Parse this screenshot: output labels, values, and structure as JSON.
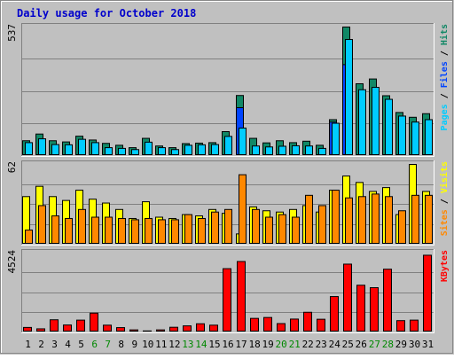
{
  "chart_data": {
    "type": "bar",
    "title": "Daily usage for October 2018",
    "categories": [
      "1",
      "2",
      "3",
      "4",
      "5",
      "6",
      "7",
      "8",
      "9",
      "10",
      "11",
      "12",
      "13",
      "14",
      "15",
      "16",
      "17",
      "18",
      "19",
      "20",
      "21",
      "22",
      "23",
      "24",
      "25",
      "26",
      "27",
      "28",
      "29",
      "30",
      "31"
    ],
    "weekend_days": [
      "6",
      "7",
      "13",
      "14",
      "20",
      "21",
      "27",
      "28"
    ],
    "grid": true,
    "panels": [
      {
        "name": "top",
        "max_label": "537",
        "ylim": [
          0,
          537
        ],
        "right_label": [
          {
            "text": "Pages",
            "color": "#00ccff"
          },
          {
            "text": " / ",
            "color": "#000000"
          },
          {
            "text": "Files",
            "color": "#0044ff"
          },
          {
            "text": " / ",
            "color": "#000000"
          },
          {
            "text": "Hits",
            "color": "#118866"
          }
        ],
        "series": [
          {
            "name": "Hits",
            "color": "#118866",
            "values": [
              62,
              90,
              62,
              57,
              81,
              65,
              51,
              43,
              33,
              72,
              40,
              33,
              50,
              52,
              54,
              100,
              251,
              72,
              53,
              62,
              54,
              60,
              43,
              150,
              537,
              300,
              320,
              250,
              180,
              160,
              175
            ]
          },
          {
            "name": "Files",
            "color": "#0044ff",
            "values": [
              0,
              0,
              0,
              0,
              0,
              0,
              0,
              0,
              0,
              0,
              0,
              0,
              0,
              0,
              0,
              0,
              200,
              0,
              0,
              0,
              0,
              0,
              0,
              140,
              380,
              0,
              0,
              0,
              0,
              0,
              0
            ]
          },
          {
            "name": "Pages",
            "color": "#00ccff",
            "values": [
              54,
              70,
              46,
              45,
              68,
              54,
              33,
              30,
              25,
              56,
              33,
              25,
              43,
              45,
              46,
              80,
              115,
              40,
              36,
              39,
              41,
              40,
              30,
              135,
              485,
              275,
              285,
              235,
              165,
              140,
              150
            ]
          }
        ]
      },
      {
        "name": "middle",
        "max_label": "62",
        "ylim": [
          0,
          62
        ],
        "right_label": [
          {
            "text": "Sites",
            "color": "#ff8800"
          },
          {
            "text": " / ",
            "color": "#000000"
          },
          {
            "text": "Visits",
            "color": "#ffff00"
          }
        ],
        "series": [
          {
            "name": "Visits",
            "color": "#ffff00",
            "values": [
              37,
              45,
              37,
              34,
              42,
              35,
              32,
              27,
              20,
              33,
              21,
              20,
              23,
              22,
              27,
              24,
              8,
              29,
              26,
              25,
              27,
              30,
              25,
              42,
              53,
              48,
              41,
              44,
              23,
              62,
              41
            ]
          },
          {
            "name": "Sites",
            "color": "#ff8800",
            "values": [
              11,
              30,
              22,
              20,
              27,
              21,
              21,
              20,
              19,
              20,
              19,
              19,
              23,
              20,
              25,
              27,
              54,
              27,
              21,
              23,
              21,
              38,
              30,
              42,
              36,
              37,
              39,
              37,
              26,
              38,
              38
            ]
          }
        ]
      },
      {
        "name": "bottom",
        "max_label": "4524",
        "ylim": [
          0,
          4524
        ],
        "right_label": [
          {
            "text": "KBytes",
            "color": "#ff0000"
          }
        ],
        "series": [
          {
            "name": "KBytes",
            "color": "#ff0000",
            "values": [
              260,
              180,
              700,
              400,
              680,
              1080,
              390,
              250,
              120,
              60,
              120,
              270,
              350,
              470,
              390,
              3630,
              4040,
              780,
              830,
              480,
              740,
              1130,
              730,
              2030,
              3890,
              2680,
              2540,
              3600,
              650,
              680,
              4400
            ]
          }
        ]
      }
    ]
  }
}
